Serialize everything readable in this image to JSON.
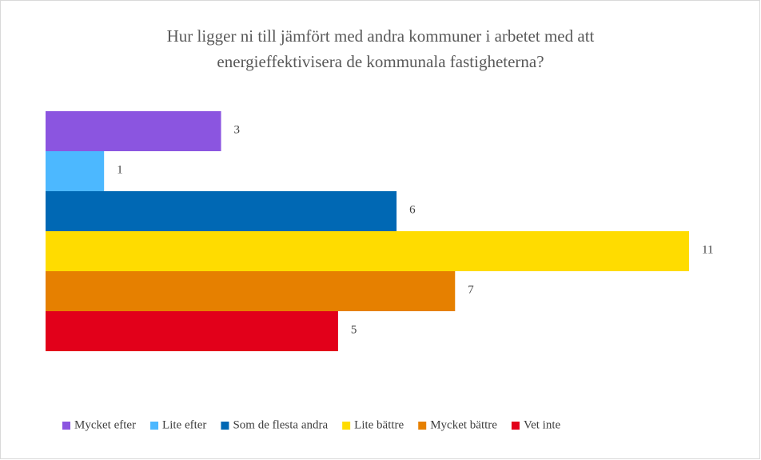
{
  "chart_data": {
    "type": "hbar",
    "title": [
      "Hur ligger ni till jämfört med andra kommuner i arbetet med att",
      "energieffektivisera de kommunala fastigheterna?"
    ],
    "series": [
      {
        "name": "Mycket efter",
        "color": "#8b55e0",
        "values": [
          3
        ]
      },
      {
        "name": "Lite efter",
        "color": "#4cb8ff",
        "values": [
          1
        ]
      },
      {
        "name": "Som de flesta andra",
        "color": "#0068b4",
        "values": [
          6
        ]
      },
      {
        "name": "Lite bättre",
        "color": "#ffdc00",
        "values": [
          11
        ]
      },
      {
        "name": "Mycket bättre",
        "color": "#e68000",
        "values": [
          7
        ]
      },
      {
        "name": "Vet inte",
        "color": "#e2001a",
        "values": [
          5
        ]
      }
    ],
    "legend": "bottom"
  }
}
